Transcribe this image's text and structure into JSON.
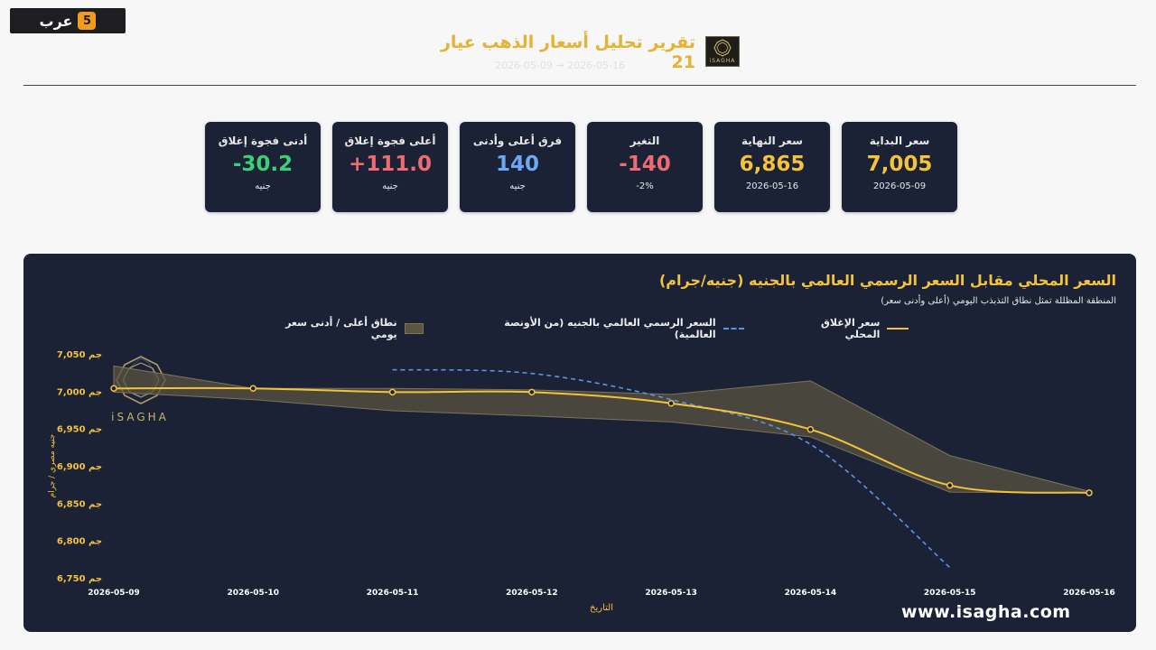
{
  "corner_logo": {
    "text": "عرب",
    "badge": "5"
  },
  "header": {
    "title": "تقرير تحليل أسعار الذهب عيار 21",
    "subtitle": "2026-05-09 → 2026-05-16",
    "brand_text": "iSAGHA"
  },
  "cards": [
    {
      "label": "سعر البداية",
      "value": "7,005",
      "sub": "2026-05-09",
      "tone": "gold"
    },
    {
      "label": "سعر النهاية",
      "value": "6,865",
      "sub": "2026-05-16",
      "tone": "gold"
    },
    {
      "label": "التغير",
      "value": "-140",
      "sub": "-2%",
      "tone": "red"
    },
    {
      "label": "فرق أعلى وأدنى",
      "value": "140",
      "sub": "جنيه",
      "tone": "blue"
    },
    {
      "label": "أعلى فجوة إغلاق",
      "value": "+111.0",
      "sub": "جنيه",
      "tone": "red"
    },
    {
      "label": "أدنى فجوة إغلاق",
      "value": "-30.2",
      "sub": "جنيه",
      "tone": "green"
    }
  ],
  "legend": {
    "local": "سعر الإغلاق المحلي",
    "global": "السعر الرسمي العالمي بالجنيه (من الأونصة العالمية)",
    "range": "نطاق أعلى / أدنى سعر يومي"
  },
  "colors": {
    "local": "#f4c23b",
    "global": "#5c93e6",
    "band": "#5a5440",
    "panel": "#1b2236"
  },
  "watermark": {
    "text": "iSAGHA",
    "site": "www.isagha.com"
  },
  "chart_data": {
    "type": "line",
    "title": "السعر المحلي مقابل السعر الرسمي العالمي بالجنيه (جنيه/جرام)",
    "subtitle": "المنطقة المظللة تمثل نطاق التذبذب اليومي (أعلى وأدنى سعر)",
    "xlabel": "التاريخ",
    "ylabel": "جنيه مصري / جرام",
    "x": [
      "2026-05-09",
      "2026-05-10",
      "2026-05-11",
      "2026-05-12",
      "2026-05-13",
      "2026-05-14",
      "2026-05-15",
      "2026-05-16"
    ],
    "ylim": [
      6750,
      7050
    ],
    "yticks": [
      6750,
      6800,
      6850,
      6900,
      6950,
      7000,
      7050
    ],
    "ytick_labels": [
      "6,750 جم",
      "6,800 جم",
      "6,850 جم",
      "6,900 جم",
      "6,950 جم",
      "7,000 جم",
      "7,050 جم"
    ],
    "series": [
      {
        "name": "سعر الإغلاق المحلي",
        "values": [
          7005,
          7005,
          7000,
          7000,
          6985,
          6950,
          6875,
          6865
        ]
      },
      {
        "name": "السعر الرسمي العالمي بالجنيه (من الأونصة العالمية)",
        "values": [
          null,
          null,
          7030,
          7025,
          6990,
          6930,
          6765,
          null
        ]
      }
    ],
    "range_high": [
      7035,
      7005,
      7005,
      7003,
      6997,
      7015,
      6915,
      6867
    ],
    "range_low": [
      7000,
      6990,
      6975,
      6968,
      6960,
      6940,
      6866,
      6865
    ],
    "legend_position": "top"
  }
}
